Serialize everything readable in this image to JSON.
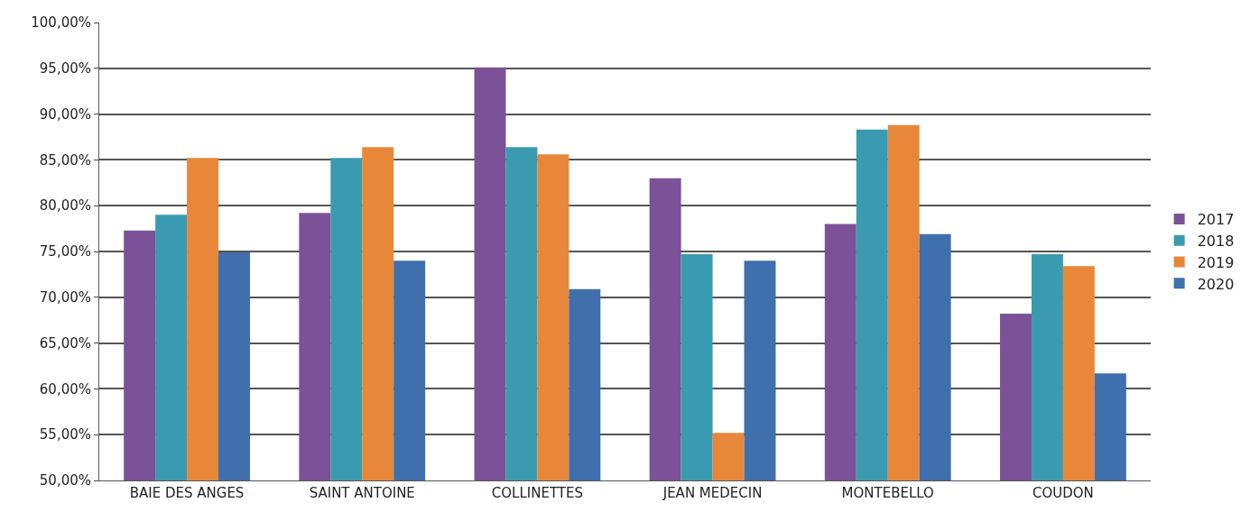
{
  "chart_data": {
    "type": "bar",
    "categories": [
      "BAIE DES ANGES",
      "SAINT ANTOINE",
      "COLLINETTES",
      "JEAN MEDECIN",
      "MONTEBELLO",
      "COUDON"
    ],
    "series": [
      {
        "name": "2017",
        "color": "#7b5198",
        "values": [
          77.3,
          79.2,
          95.1,
          83.0,
          78.0,
          68.2
        ]
      },
      {
        "name": "2018",
        "color": "#3a9bb0",
        "values": [
          79.0,
          85.2,
          86.4,
          74.7,
          88.3,
          74.7
        ]
      },
      {
        "name": "2019",
        "color": "#e8873a",
        "values": [
          85.2,
          86.4,
          85.6,
          55.2,
          88.8,
          73.4
        ]
      },
      {
        "name": "2020",
        "color": "#3f6fad",
        "values": [
          74.9,
          74.0,
          70.9,
          74.0,
          76.9,
          61.7
        ]
      }
    ],
    "ylim": [
      50,
      100
    ],
    "yticks": [
      {
        "value": 50,
        "label": "50,00%"
      },
      {
        "value": 55,
        "label": "55,00%"
      },
      {
        "value": 60,
        "label": "60,00%"
      },
      {
        "value": 65,
        "label": "65,00%"
      },
      {
        "value": 70,
        "label": "70,00%"
      },
      {
        "value": 75,
        "label": "75,00%"
      },
      {
        "value": 80,
        "label": "80,00%"
      },
      {
        "value": 85,
        "label": "85,00%"
      },
      {
        "value": 90,
        "label": "90,00%"
      },
      {
        "value": 95,
        "label": "95,00%"
      },
      {
        "value": 100,
        "label": "100,00%"
      }
    ],
    "grid": "y",
    "legend": "right"
  }
}
